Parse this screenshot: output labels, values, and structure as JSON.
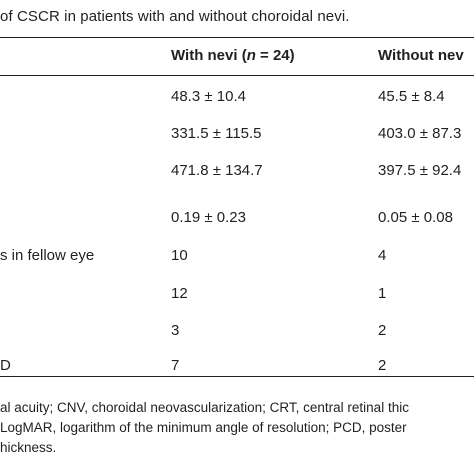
{
  "caption": "of CSCR in patients with and without choroidal nevi.",
  "table": {
    "headers": {
      "col1_text": "With nevi (",
      "col1_italic": "n",
      "col1_suffix": " = 24)",
      "col2": "Without nev"
    },
    "rows": [
      {
        "label": "",
        "with": "48.3 ± 10.4",
        "without": "45.5 ± 8.4"
      },
      {
        "label": "",
        "with": "331.5 ± 115.5",
        "without": "403.0 ± 87.3"
      },
      {
        "label": "",
        "with": "471.8 ± 134.7",
        "without": "397.5 ± 92.4"
      },
      {
        "label": "",
        "with": "0.19 ± 0.23",
        "without": "0.05 ± 0.08"
      },
      {
        "label": "s in fellow eye",
        "with": "10",
        "without": "4"
      },
      {
        "label": "",
        "with": "12",
        "without": "1"
      },
      {
        "label": "",
        "with": "3",
        "without": "2"
      },
      {
        "label": "D",
        "with": "7",
        "without": "2"
      }
    ]
  },
  "footnotes": [
    "al acuity; CNV, choroidal neovascularization; CRT, central retinal thic",
    "LogMAR, logarithm of the minimum angle of resolution; PCD, poster",
    "hickness."
  ]
}
